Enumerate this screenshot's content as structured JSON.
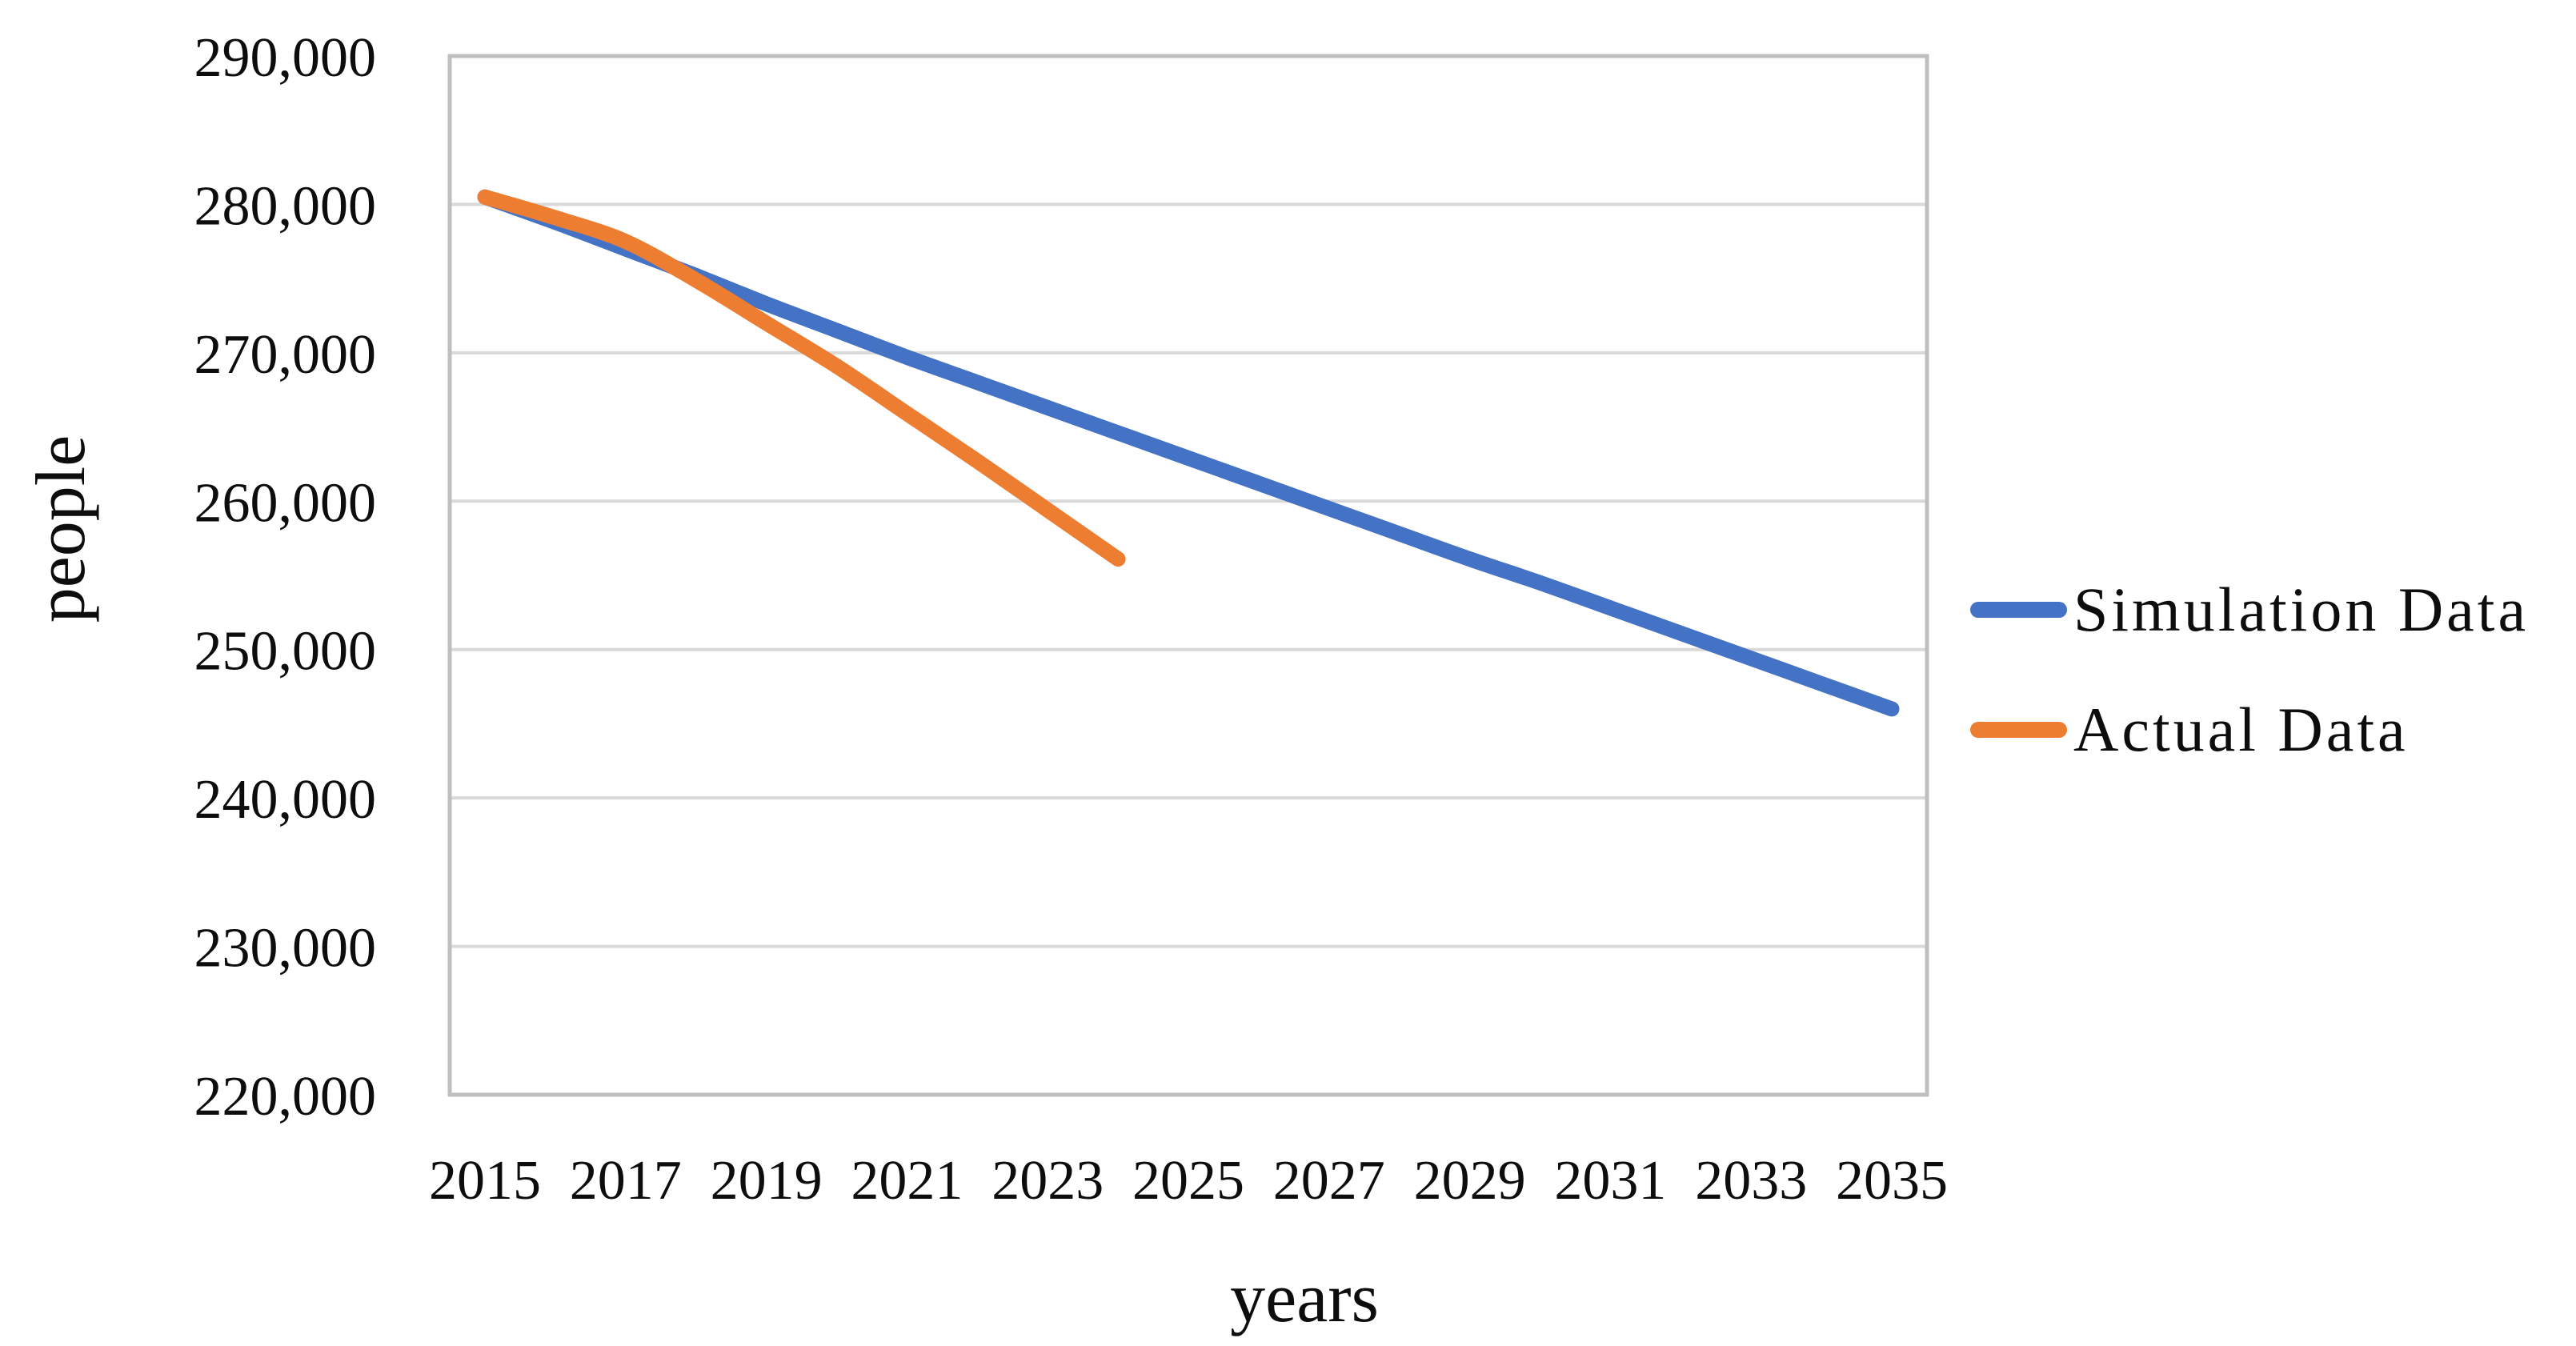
{
  "chart_data": {
    "type": "line",
    "title": "",
    "xlabel": "years",
    "ylabel": "people",
    "grid": true,
    "legend_position": "right",
    "x_axis": {
      "min": 2015,
      "max": 2035,
      "tick_step": 2,
      "categories_between_ticks": true
    },
    "y_axis": {
      "min": 220000,
      "max": 290000,
      "step": 10000
    },
    "x_tick_labels": [
      "2015",
      "2017",
      "2019",
      "2021",
      "2023",
      "2025",
      "2027",
      "2029",
      "2031",
      "2033",
      "2035"
    ],
    "y_tick_labels": [
      "220,000",
      "230,000",
      "240,000",
      "250,000",
      "260,000",
      "270,000",
      "280,000",
      "290,000"
    ],
    "series": [
      {
        "name": "Simulation Data",
        "color": "#4472C4",
        "x_start": 2015,
        "x": [
          2015,
          2016,
          2017,
          2018,
          2019,
          2020,
          2021,
          2022,
          2023,
          2024,
          2025,
          2026,
          2027,
          2028,
          2029,
          2030,
          2031,
          2032,
          2033,
          2034,
          2035
        ],
        "values": [
          280500,
          278800,
          277000,
          275200,
          273300,
          271500,
          269700,
          268000,
          266300,
          264600,
          262900,
          261200,
          259500,
          257800,
          256100,
          254500,
          252800,
          251100,
          249400,
          247700,
          246000
        ]
      },
      {
        "name": "Actual Data",
        "color": "#ED7D31",
        "x_start": 2015,
        "x": [
          2015,
          2016,
          2017,
          2018,
          2019,
          2020,
          2021,
          2022,
          2023,
          2024
        ],
        "values": [
          280500,
          279100,
          277500,
          274900,
          272000,
          269100,
          265900,
          262700,
          259400,
          256100
        ]
      }
    ]
  },
  "colors": {
    "background": "#FFFFFF",
    "gridline": "#D9D9D9",
    "axis_line": "#BFBFBF",
    "text": "#0D0D0D"
  }
}
